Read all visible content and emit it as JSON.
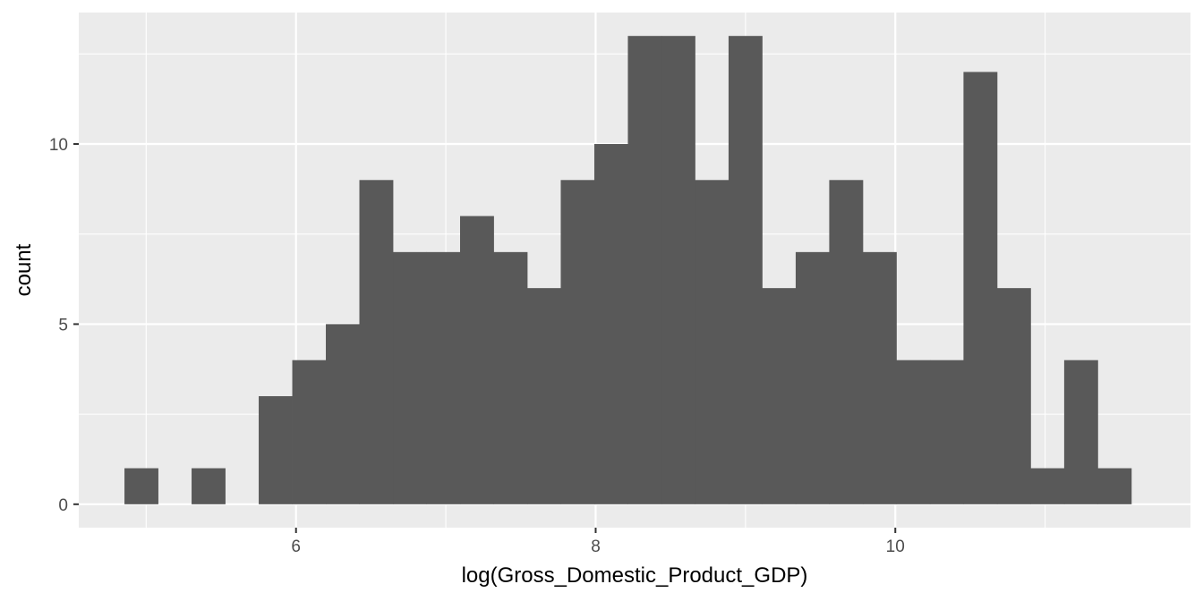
{
  "chart_data": {
    "type": "bar",
    "title": "",
    "xlabel": "log(Gross_Domestic_Product_GDP)",
    "ylabel": "count",
    "xlim": [
      4.55,
      11.97
    ],
    "ylim": [
      -0.65,
      13.65
    ],
    "x_ticks": [
      6,
      8,
      10
    ],
    "y_ticks": [
      0,
      5,
      10
    ],
    "x_tick_labels": [
      "6",
      "8",
      "10"
    ],
    "y_tick_labels": [
      "0",
      "5",
      "10"
    ],
    "grid": true,
    "bin_width": 0.224,
    "bins": [
      {
        "start": 4.855,
        "end": 5.079,
        "count": 1
      },
      {
        "start": 5.079,
        "end": 5.303,
        "count": 0
      },
      {
        "start": 5.303,
        "end": 5.527,
        "count": 1
      },
      {
        "start": 5.527,
        "end": 5.751,
        "count": 0
      },
      {
        "start": 5.751,
        "end": 5.975,
        "count": 3
      },
      {
        "start": 5.975,
        "end": 6.199,
        "count": 4
      },
      {
        "start": 6.199,
        "end": 6.423,
        "count": 5
      },
      {
        "start": 6.423,
        "end": 6.647,
        "count": 9
      },
      {
        "start": 6.647,
        "end": 6.871,
        "count": 7
      },
      {
        "start": 6.871,
        "end": 7.095,
        "count": 7
      },
      {
        "start": 7.095,
        "end": 7.319,
        "count": 8
      },
      {
        "start": 7.319,
        "end": 7.543,
        "count": 7
      },
      {
        "start": 7.543,
        "end": 7.767,
        "count": 6
      },
      {
        "start": 7.767,
        "end": 7.991,
        "count": 9
      },
      {
        "start": 7.991,
        "end": 8.215,
        "count": 10
      },
      {
        "start": 8.215,
        "end": 8.439,
        "count": 13
      },
      {
        "start": 8.439,
        "end": 8.663,
        "count": 13
      },
      {
        "start": 8.663,
        "end": 8.887,
        "count": 9
      },
      {
        "start": 8.887,
        "end": 9.111,
        "count": 13
      },
      {
        "start": 9.111,
        "end": 9.335,
        "count": 6
      },
      {
        "start": 9.335,
        "end": 9.559,
        "count": 7
      },
      {
        "start": 9.559,
        "end": 9.783,
        "count": 9
      },
      {
        "start": 9.783,
        "end": 10.007,
        "count": 7
      },
      {
        "start": 10.007,
        "end": 10.231,
        "count": 4
      },
      {
        "start": 10.231,
        "end": 10.455,
        "count": 4
      },
      {
        "start": 10.455,
        "end": 10.679,
        "count": 12
      },
      {
        "start": 10.679,
        "end": 10.903,
        "count": 6
      },
      {
        "start": 10.903,
        "end": 11.127,
        "count": 1
      },
      {
        "start": 11.127,
        "end": 11.351,
        "count": 4
      },
      {
        "start": 11.351,
        "end": 11.575,
        "count": 1
      }
    ],
    "colors": {
      "panel_background": "#ebebeb",
      "grid_line": "#ffffff",
      "bar_fill": "#595959",
      "tick_text": "#4d4d4d",
      "tick_mark": "#333333",
      "axis_title": "#000000"
    }
  }
}
